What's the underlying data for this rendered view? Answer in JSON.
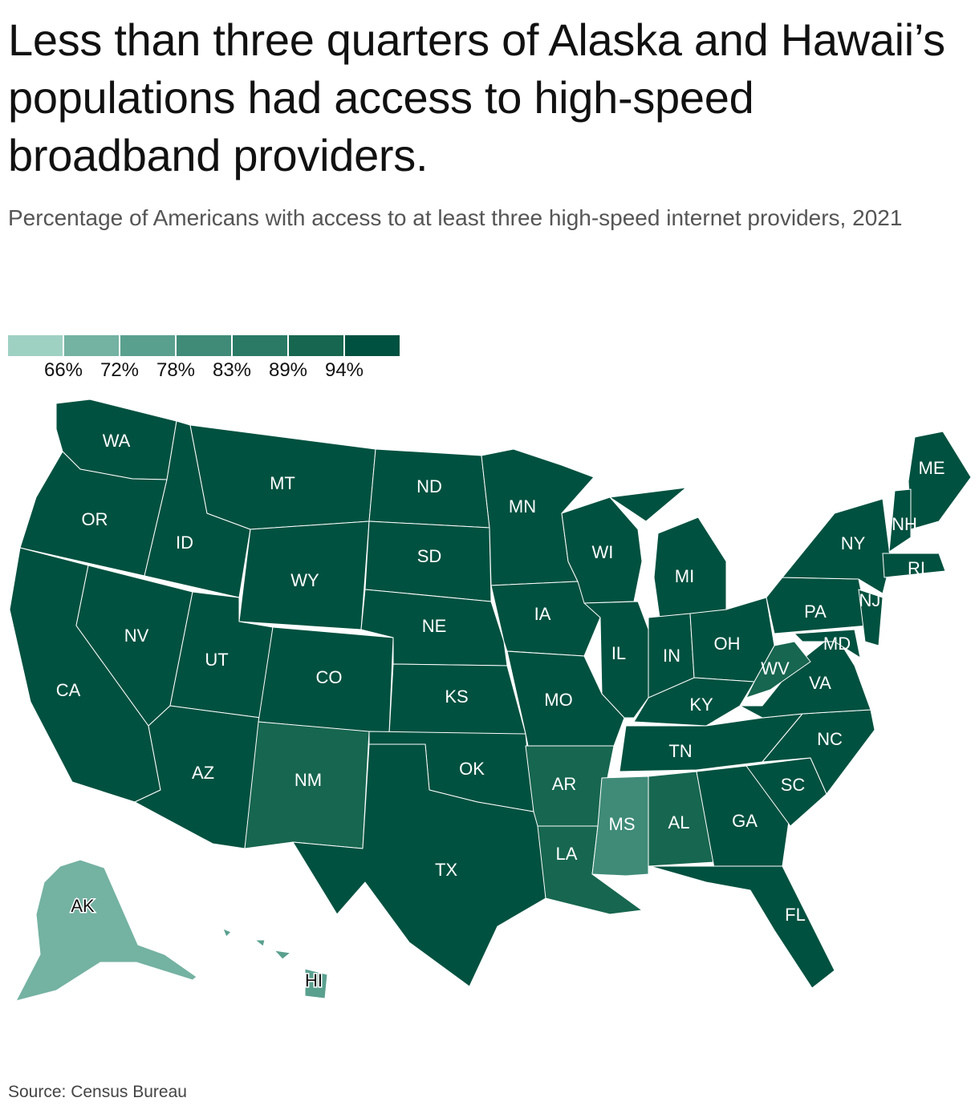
{
  "title": "Less than three quarters of Alaska and Hawaii’s populations had access to high-speed broadband providers.",
  "subtitle": "Percentage of Americans with access to at least three high-speed internet providers, 2021",
  "source": "Source: Census Bureau",
  "legend": {
    "colors": [
      "#9fd1c3",
      "#74b2a2",
      "#5aa08f",
      "#3f8b78",
      "#2a7a66",
      "#17664f",
      "#005140"
    ],
    "breaks": [
      "66%",
      "72%",
      "78%",
      "83%",
      "89%",
      "94%"
    ]
  },
  "states": [
    {
      "abbr": "WA",
      "bin": 6
    },
    {
      "abbr": "OR",
      "bin": 6
    },
    {
      "abbr": "CA",
      "bin": 6
    },
    {
      "abbr": "ID",
      "bin": 6
    },
    {
      "abbr": "NV",
      "bin": 6
    },
    {
      "abbr": "MT",
      "bin": 6
    },
    {
      "abbr": "WY",
      "bin": 6
    },
    {
      "abbr": "UT",
      "bin": 6
    },
    {
      "abbr": "AZ",
      "bin": 6
    },
    {
      "abbr": "CO",
      "bin": 6
    },
    {
      "abbr": "NM",
      "bin": 5
    },
    {
      "abbr": "ND",
      "bin": 6
    },
    {
      "abbr": "SD",
      "bin": 6
    },
    {
      "abbr": "NE",
      "bin": 6
    },
    {
      "abbr": "KS",
      "bin": 6
    },
    {
      "abbr": "OK",
      "bin": 6
    },
    {
      "abbr": "TX",
      "bin": 6
    },
    {
      "abbr": "MN",
      "bin": 6
    },
    {
      "abbr": "IA",
      "bin": 6
    },
    {
      "abbr": "MO",
      "bin": 6
    },
    {
      "abbr": "AR",
      "bin": 5
    },
    {
      "abbr": "LA",
      "bin": 5
    },
    {
      "abbr": "WI",
      "bin": 6
    },
    {
      "abbr": "IL",
      "bin": 6
    },
    {
      "abbr": "MI",
      "bin": 6
    },
    {
      "abbr": "IN",
      "bin": 6
    },
    {
      "abbr": "OH",
      "bin": 6
    },
    {
      "abbr": "KY",
      "bin": 6
    },
    {
      "abbr": "TN",
      "bin": 6
    },
    {
      "abbr": "MS",
      "bin": 3
    },
    {
      "abbr": "AL",
      "bin": 5
    },
    {
      "abbr": "GA",
      "bin": 6
    },
    {
      "abbr": "FL",
      "bin": 6
    },
    {
      "abbr": "SC",
      "bin": 6
    },
    {
      "abbr": "NC",
      "bin": 6
    },
    {
      "abbr": "VA",
      "bin": 6
    },
    {
      "abbr": "WV",
      "bin": 5
    },
    {
      "abbr": "PA",
      "bin": 6
    },
    {
      "abbr": "NY",
      "bin": 6
    },
    {
      "abbr": "MD",
      "bin": 6
    },
    {
      "abbr": "NJ",
      "bin": 6
    },
    {
      "abbr": "ME",
      "bin": 6
    },
    {
      "abbr": "NH",
      "bin": 6
    },
    {
      "abbr": "RI",
      "bin": 6
    },
    {
      "abbr": "AK",
      "bin": 1
    },
    {
      "abbr": "HI",
      "bin": 2
    }
  ]
}
